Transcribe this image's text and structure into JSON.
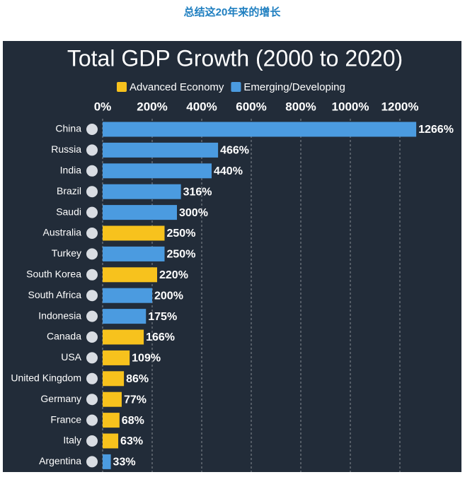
{
  "page_title": "总结这20年来的增长",
  "chart_data": {
    "type": "bar",
    "orientation": "horizontal",
    "title": "Total GDP Growth (2000 to 2020)",
    "categories": [
      "China",
      "Russia",
      "India",
      "Brazil",
      "Saudi",
      "Australia",
      "Turkey",
      "South Korea",
      "South Africa",
      "Indonesia",
      "Canada",
      "USA",
      "United Kingdom",
      "Germany",
      "France",
      "Italy",
      "Argentina"
    ],
    "series": [
      {
        "name": "Advanced Economy",
        "color": "#f7c21d",
        "values": [
          null,
          null,
          null,
          null,
          null,
          250,
          null,
          220,
          null,
          null,
          166,
          109,
          86,
          77,
          68,
          63,
          null
        ],
        "value_labels": [
          null,
          null,
          null,
          null,
          null,
          "250%",
          null,
          "220%",
          null,
          null,
          "166%",
          "109%",
          "86%",
          "77%",
          "68%",
          "63%",
          null
        ]
      },
      {
        "name": "Emerging/Developing",
        "color": "#4b9be0",
        "values": [
          1266,
          466,
          440,
          316,
          300,
          null,
          250,
          null,
          200,
          175,
          null,
          null,
          null,
          null,
          null,
          null,
          33
        ],
        "value_labels": [
          "1266%",
          "466%",
          "440%",
          "316%",
          "300%",
          null,
          "250%",
          null,
          "200%",
          "175%",
          null,
          null,
          null,
          null,
          null,
          null,
          "33%"
        ]
      }
    ],
    "xlim": [
      0,
      1350
    ],
    "xticks": [
      {
        "value": 0,
        "label": "0%"
      },
      {
        "value": 200,
        "label": "200%"
      },
      {
        "value": 400,
        "label": "400%"
      },
      {
        "value": 600,
        "label": "600%"
      },
      {
        "value": 800,
        "label": "800%"
      },
      {
        "value": 1000,
        "label": "1000%"
      },
      {
        "value": 1200,
        "label": "1200%"
      }
    ],
    "grid": true
  }
}
